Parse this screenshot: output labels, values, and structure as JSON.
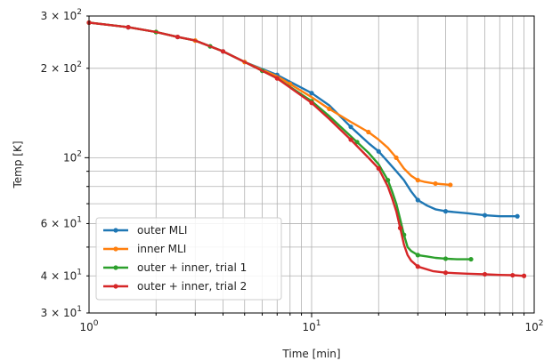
{
  "chart_data": {
    "type": "line",
    "title": "",
    "xlabel": "Time [min]",
    "ylabel": "Temp [K]",
    "xscale": "log",
    "yscale": "log",
    "xlim": [
      1,
      100
    ],
    "ylim": [
      30,
      300
    ],
    "grid": "both",
    "legend_position": "lower-left",
    "x_tick_labels": [
      {
        "value": 1,
        "base": "10",
        "exp": "0"
      },
      {
        "value": 10,
        "base": "10",
        "exp": "1"
      },
      {
        "value": 100,
        "base": "10",
        "exp": "2"
      }
    ],
    "y_tick_labels": [
      {
        "value": 30,
        "mant": "3",
        "base": "10",
        "exp": "1"
      },
      {
        "value": 40,
        "mant": "4",
        "base": "10",
        "exp": "1"
      },
      {
        "value": 60,
        "mant": "6",
        "base": "10",
        "exp": "1"
      },
      {
        "value": 100,
        "mant": "",
        "base": "10",
        "exp": "2"
      },
      {
        "value": 200,
        "mant": "2",
        "base": "10",
        "exp": "2"
      },
      {
        "value": 300,
        "mant": "3",
        "base": "10",
        "exp": "2"
      }
    ],
    "series": [
      {
        "name": "outer MLI",
        "color": "#1f77b4",
        "x": [
          1,
          1.5,
          2,
          2.5,
          3,
          4,
          5,
          7,
          10,
          12,
          15,
          18,
          20,
          22,
          24,
          26,
          28,
          30,
          33,
          36,
          40,
          50,
          60,
          70,
          80,
          84
        ],
        "y": [
          285,
          275,
          265,
          255,
          248,
          228,
          210,
          190,
          165,
          150,
          127,
          112,
          105,
          97,
          90,
          84,
          77,
          72,
          69,
          67,
          66,
          65,
          64,
          63.5,
          63.5,
          63.5
        ],
        "markers": [
          1,
          1.5,
          2.5,
          4,
          7,
          10,
          15,
          20,
          30,
          40,
          60,
          84
        ]
      },
      {
        "name": "inner MLI",
        "color": "#ff7f0e",
        "x": [
          1,
          1.5,
          2,
          2.5,
          3,
          4,
          5,
          7,
          10,
          12,
          15,
          18,
          20,
          22,
          24,
          26,
          28,
          30,
          32,
          35,
          38,
          42
        ],
        "y": [
          285,
          275,
          265,
          255,
          248,
          228,
          210,
          188,
          160,
          146,
          132,
          122,
          115,
          108,
          100,
          92,
          87,
          84,
          83,
          82,
          81.5,
          81
        ],
        "markers": [
          1,
          2,
          3,
          5,
          8,
          12,
          18,
          24,
          30,
          36,
          42
        ]
      },
      {
        "name": "outer + inner, trial 1",
        "color": "#2ca02c",
        "x": [
          1,
          1.5,
          2,
          2.5,
          3,
          4,
          5,
          7,
          10,
          12,
          15,
          18,
          20,
          22,
          23,
          24,
          25,
          26,
          27,
          28,
          30,
          33,
          36,
          40,
          45,
          52
        ],
        "y": [
          285,
          275,
          265,
          255,
          248,
          228,
          210,
          185,
          155,
          138,
          118,
          104,
          95,
          84,
          77,
          70,
          62,
          55,
          50,
          48.5,
          47,
          46.5,
          46,
          45.7,
          45.5,
          45.5
        ],
        "markers": [
          1,
          2,
          3.5,
          6,
          10,
          16,
          22,
          26,
          30,
          40,
          52
        ]
      },
      {
        "name": "outer + inner, trial 2",
        "color": "#d62728",
        "x": [
          1,
          1.5,
          2,
          2.5,
          3,
          4,
          5,
          7,
          10,
          12,
          15,
          18,
          20,
          22,
          23,
          24,
          25,
          26,
          27,
          28,
          30,
          35,
          40,
          50,
          60,
          70,
          80,
          90
        ],
        "y": [
          285,
          275,
          265,
          255,
          248,
          228,
          210,
          185,
          153,
          135,
          115,
          100,
          92,
          80,
          73,
          66,
          58,
          51,
          47,
          45,
          43,
          41.5,
          41,
          40.7,
          40.5,
          40.3,
          40.2,
          40
        ],
        "markers": [
          1,
          1.5,
          2.5,
          4,
          7,
          10,
          15,
          20,
          25,
          30,
          40,
          60,
          80,
          90
        ]
      }
    ]
  }
}
